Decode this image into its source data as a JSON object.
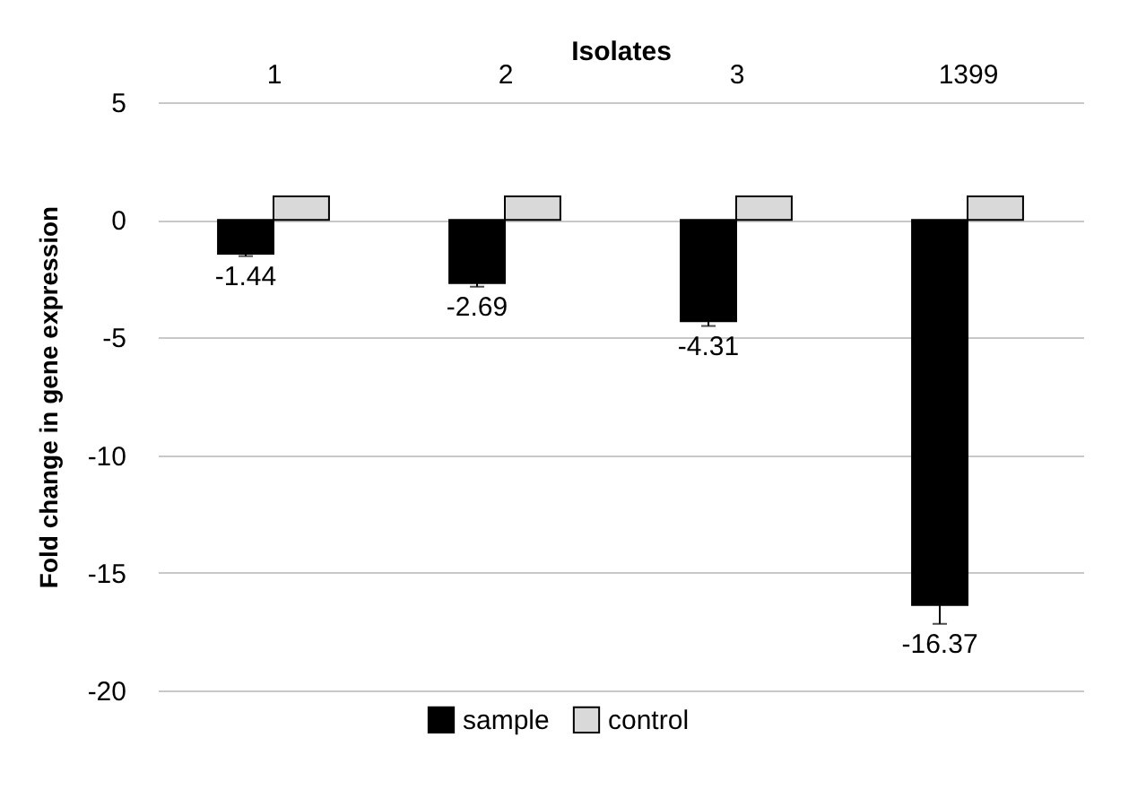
{
  "chart_data": {
    "type": "bar",
    "xlabel": "Isolates",
    "ylabel": "Fold change in  gene expression",
    "categories": [
      "1",
      "2",
      "3",
      "1399"
    ],
    "series": [
      {
        "name": "sample",
        "color": "#000000",
        "values": [
          -1.44,
          -2.69,
          -4.31,
          -16.37
        ],
        "errors": [
          0.1,
          0.15,
          0.2,
          0.8
        ],
        "value_labels": [
          "-1.44",
          "-2.69",
          "-4.31",
          "-16.37"
        ]
      },
      {
        "name": "control",
        "color": "#d9d9d9",
        "values": [
          1,
          1,
          1,
          1
        ]
      }
    ],
    "ylim": [
      -20,
      5
    ],
    "yticks": [
      -20,
      -15,
      -10,
      -5,
      0,
      5
    ],
    "grid": "y",
    "legend": "bottom"
  }
}
